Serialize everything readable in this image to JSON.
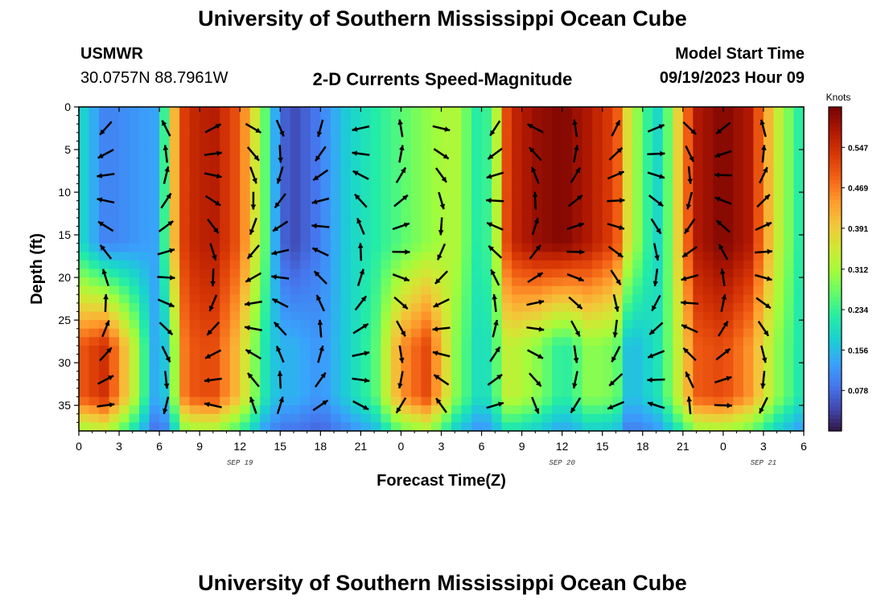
{
  "header": {
    "title": "University of Southern Mississippi Ocean Cube",
    "station": "USMWR",
    "coords": "30.0757N  88.7961W",
    "subtitle": "2-D Currents Speed-Magnitude",
    "model_label": "Model Start Time",
    "model_time": "09/19/2023 Hour 09"
  },
  "footer": {
    "title": "University of Southern Mississippi Ocean Cube"
  },
  "colors": {
    "scale": [
      "#30123b",
      "#4145ab",
      "#4675ed",
      "#39a2fc",
      "#1bcfd4",
      "#24eca6",
      "#61fc6c",
      "#a4fc3b",
      "#d1e834",
      "#f3c63a",
      "#fe9b2d",
      "#f36315",
      "#d93806",
      "#b11901",
      "#7a0403"
    ],
    "arrow": "#000000",
    "frame": "#000000"
  },
  "chart_data": {
    "type": "heatmap",
    "title": "2-D Currents Speed-Magnitude",
    "xlabel": "Forecast Time(Z)",
    "ylabel": "Depth (ft)",
    "xlim": [
      0,
      54
    ],
    "ylim": [
      38,
      0
    ],
    "x_tick_values": [
      0,
      3,
      6,
      9,
      12,
      15,
      18,
      21,
      24,
      27,
      30,
      33,
      36,
      39,
      42,
      45,
      48,
      51,
      54
    ],
    "x_tick_labels": [
      "0",
      "3",
      "6",
      "9",
      "12",
      "15",
      "18",
      "21",
      "0",
      "3",
      "6",
      "9",
      "12",
      "15",
      "18",
      "21",
      "0",
      "3",
      "6"
    ],
    "y_ticks": [
      0,
      5,
      10,
      15,
      20,
      25,
      30,
      35
    ],
    "date_labels": [
      {
        "x": 12,
        "text": "SEP 19"
      },
      {
        "x": 36,
        "text": "SEP 20"
      },
      {
        "x": 51,
        "text": "SEP 21"
      }
    ],
    "colorbar": {
      "title": "Knots",
      "range": [
        0.0,
        0.625
      ],
      "ticks": [
        "0.547",
        "0.469",
        "0.391",
        "0.312",
        "0.234",
        "0.156",
        "0.078"
      ]
    },
    "arrow_times": [
      2,
      6.5,
      10,
      13,
      15,
      18,
      21,
      24,
      27,
      31,
      34,
      37,
      40,
      43,
      45.5,
      48,
      51
    ],
    "arrow_depths": [
      2.5,
      5.5,
      8,
      11,
      14,
      17,
      20,
      23,
      26,
      29,
      32,
      35
    ],
    "speed_profile_times": [
      0,
      2,
      4,
      6,
      7,
      8,
      10,
      12,
      14,
      15,
      16,
      18,
      20,
      22,
      24,
      26,
      28,
      30,
      31,
      32,
      34,
      36,
      37,
      38,
      40,
      41,
      43,
      44,
      45,
      46,
      48,
      50,
      52,
      54
    ],
    "speed_profile_surface": [
      0.2,
      0.1,
      0.12,
      0.14,
      0.4,
      0.55,
      0.58,
      0.5,
      0.25,
      0.08,
      0.05,
      0.1,
      0.18,
      0.22,
      0.26,
      0.3,
      0.33,
      0.2,
      0.3,
      0.55,
      0.6,
      0.62,
      0.6,
      0.58,
      0.52,
      0.35,
      0.18,
      0.28,
      0.45,
      0.58,
      0.62,
      0.58,
      0.35,
      0.2
    ],
    "speed_profile_bottom": [
      0.5,
      0.55,
      0.35,
      0.1,
      0.28,
      0.5,
      0.52,
      0.4,
      0.2,
      0.15,
      0.15,
      0.12,
      0.18,
      0.25,
      0.45,
      0.52,
      0.3,
      0.18,
      0.25,
      0.35,
      0.3,
      0.22,
      0.25,
      0.3,
      0.28,
      0.15,
      0.2,
      0.28,
      0.38,
      0.5,
      0.52,
      0.45,
      0.3,
      0.2
    ]
  }
}
